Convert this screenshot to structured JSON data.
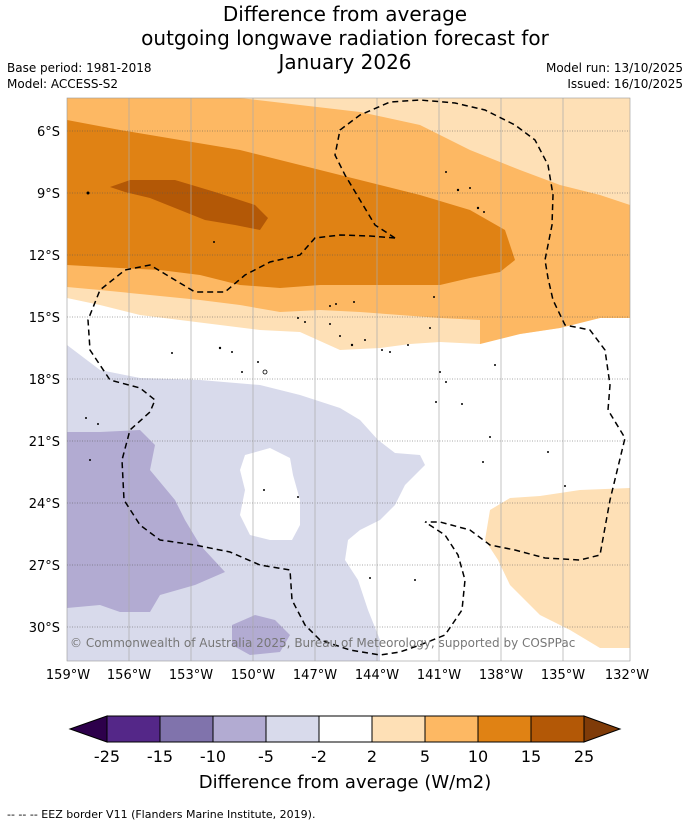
{
  "title": {
    "line1": "Difference from average",
    "line2": "outgoing longwave radiation forecast for",
    "line3": "January 2026"
  },
  "meta": {
    "base_period": "Base period: 1981-2018",
    "model": "Model: ACCESS-S2",
    "model_run": "Model run: 13/10/2025",
    "issued": "Issued: 16/10/2025"
  },
  "map": {
    "lon_labels": [
      "159°W",
      "156°W",
      "153°W",
      "150°W",
      "147°W",
      "144°W",
      "141°W",
      "138°W",
      "135°W",
      "132°W"
    ],
    "lat_labels": [
      "6°S",
      "9°S",
      "12°S",
      "15°S",
      "18°S",
      "21°S",
      "24°S",
      "27°S",
      "30°S"
    ],
    "copyright": "© Commonwealth of Australia 2025, Bureau of Meteorology, supported by COSPPac"
  },
  "colorbar": {
    "ticks": [
      "-25",
      "-15",
      "-10",
      "-5",
      "-2",
      "2",
      "5",
      "10",
      "15",
      "25"
    ],
    "label": "Difference from average (W/m2)",
    "colors": {
      "below_min": "#2d004b",
      "m25_m15": "#542788",
      "m15_m10": "#8073ac",
      "m10_m5": "#b2abd2",
      "m5_m2": "#d8daeb",
      "m2_p2": "#ffffff",
      "p2_p5": "#fee0b6",
      "p5_p10": "#fdb863",
      "p10_p15": "#e08214",
      "p15_p25": "#b35806",
      "above_max": "#7f3b08"
    }
  },
  "footer": {
    "legend": "--  --  -- EEZ border V11 (Flanders Marine Institute, 2019)."
  }
}
